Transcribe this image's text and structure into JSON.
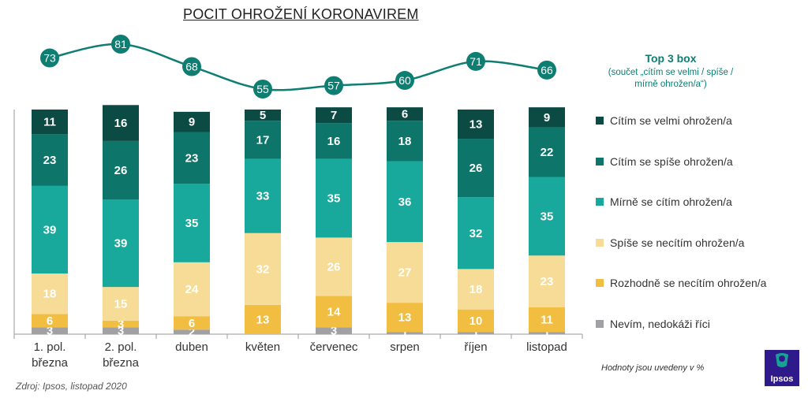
{
  "chart_data": {
    "type": "bar",
    "stacked": true,
    "title": "POCIT OHROŽENÍ KORONAVIREM",
    "categories": [
      [
        "1. pol.",
        "března"
      ],
      [
        "2. pol.",
        "března"
      ],
      [
        "duben"
      ],
      [
        "květen"
      ],
      [
        "červenec"
      ],
      [
        "srpen"
      ],
      [
        "říjen"
      ],
      [
        "listopad"
      ]
    ],
    "series": [
      {
        "name": "Nevím, nedokáži říci",
        "color": "#a1a1a4",
        "values": [
          3,
          3,
          2,
          0,
          3,
          1,
          1,
          1
        ]
      },
      {
        "name": "Rozhodně se necítím ohrožen/a",
        "color": "#f1be41",
        "values": [
          6,
          3,
          6,
          13,
          14,
          13,
          10,
          11
        ]
      },
      {
        "name": "Spíše se necítím ohrožen/a",
        "color": "#f6dc97",
        "values": [
          18,
          15,
          24,
          32,
          26,
          27,
          18,
          23
        ]
      },
      {
        "name": "Mírně se cítím ohrožen/a",
        "color": "#19a89c",
        "values": [
          39,
          39,
          35,
          33,
          35,
          36,
          32,
          35
        ]
      },
      {
        "name": "Cítím se spíše ohrožen/a",
        "color": "#0d7569",
        "values": [
          23,
          26,
          23,
          17,
          16,
          18,
          26,
          22
        ]
      },
      {
        "name": "Cítím se velmi ohrožen/a",
        "color": "#0b4b43",
        "values": [
          11,
          16,
          9,
          5,
          7,
          6,
          13,
          9
        ]
      }
    ],
    "top3": {
      "title": "Top 3 box",
      "subtitle": "(součet „cítím se velmi / spíše / mírně ohrožen/a“)",
      "color": "#0e7d72",
      "values": [
        73,
        81,
        68,
        55,
        57,
        60,
        71,
        66
      ]
    },
    "ylim": [
      0,
      100
    ],
    "legend": "right",
    "grid": false
  },
  "note": "Hodnoty jsou uvedeny v %",
  "source": "Zdroj: Ipsos, listopad 2020",
  "logo_text": "Ipsos"
}
